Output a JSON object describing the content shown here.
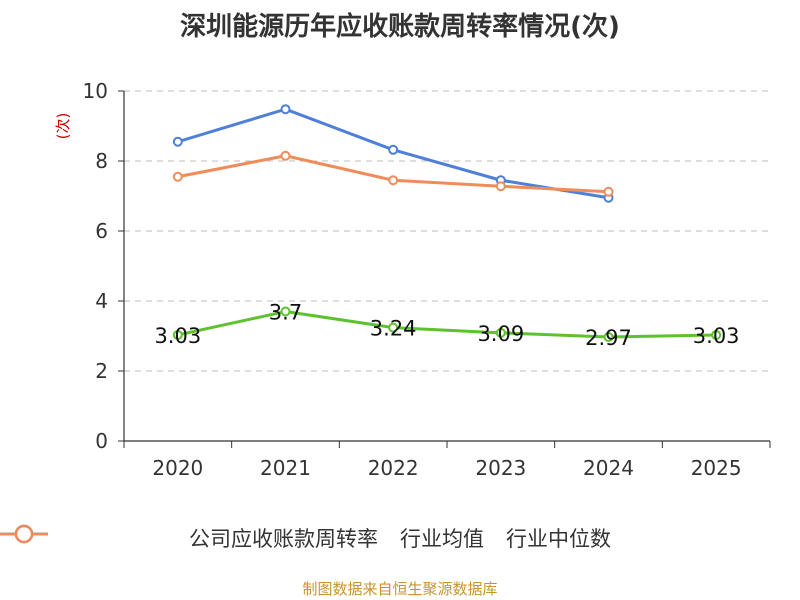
{
  "source": "制图数据来自恒生聚源数据库",
  "colors": {
    "company": "#5ec22e",
    "industry_avg": "#4e7fd9",
    "industry_median": "#f08c5a",
    "axis": "#333333",
    "grid": "#bdbdbd",
    "ylabel": "#cc0000"
  },
  "chart_data": {
    "type": "line",
    "title": "深圳能源历年应收账款周转率情况(次)",
    "ylabel": "(次)",
    "xlabel": "",
    "ylim": [
      0,
      10
    ],
    "yticks": [
      0,
      2,
      4,
      6,
      8,
      10
    ],
    "grid": true,
    "legend_position": "bottom",
    "categories": [
      "2020",
      "2021",
      "2022",
      "2023",
      "2024",
      "2025"
    ],
    "series": [
      {
        "name": "公司应收账款周转率",
        "color_key": "company",
        "values": [
          3.03,
          3.7,
          3.24,
          3.09,
          2.97,
          3.03
        ],
        "labels": [
          "3.03",
          "3.7",
          "3.24",
          "3.09",
          "2.97",
          "3.03"
        ]
      },
      {
        "name": "行业均值",
        "color_key": "industry_avg",
        "values": [
          8.55,
          9.48,
          8.32,
          7.45,
          6.95,
          null
        ]
      },
      {
        "name": "行业中位数",
        "color_key": "industry_median",
        "values": [
          7.55,
          8.15,
          7.45,
          7.28,
          7.12,
          null
        ]
      }
    ]
  }
}
